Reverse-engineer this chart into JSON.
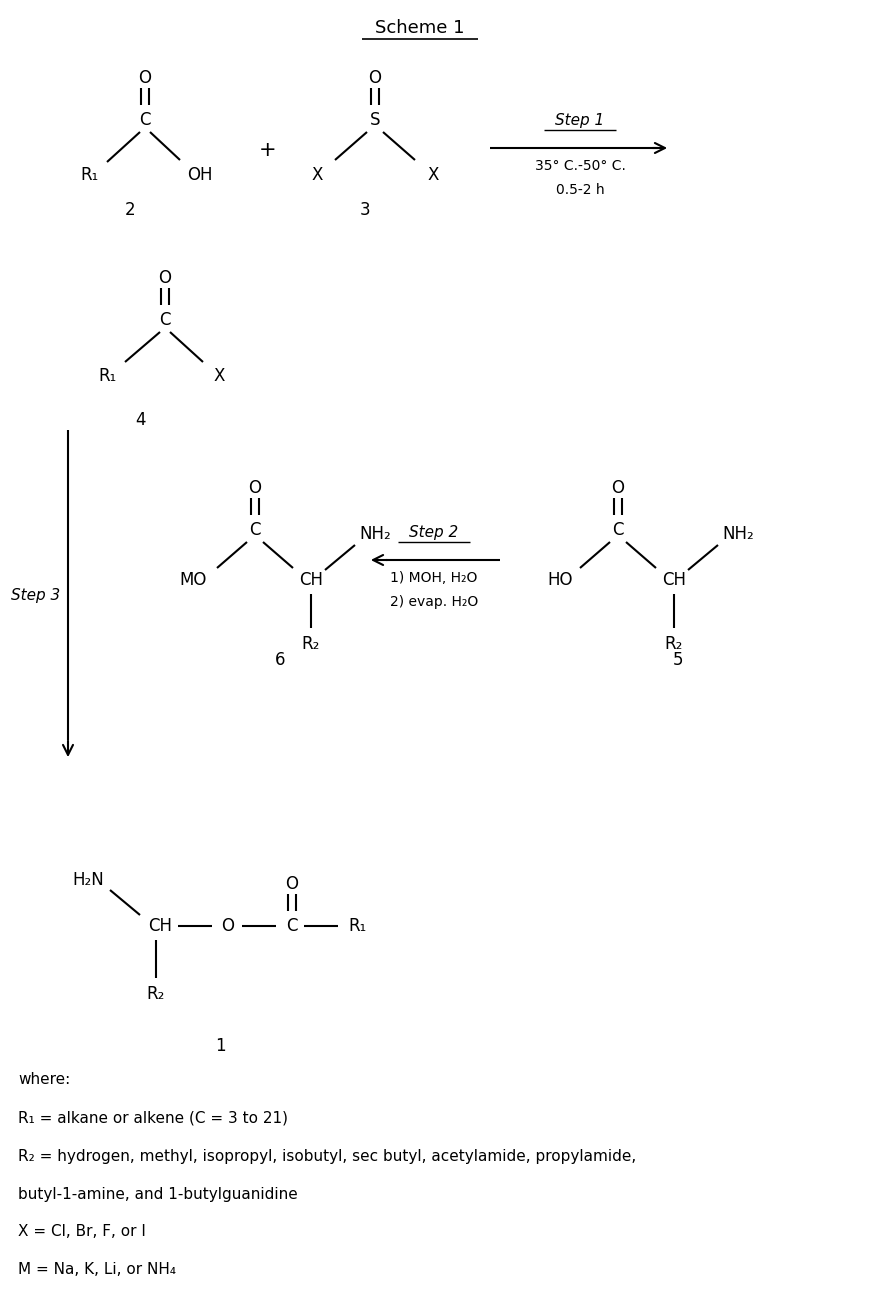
{
  "title": "Scheme 1",
  "bg_color": "#ffffff",
  "text_color": "#000000",
  "font_size": 12,
  "footnote_lines": [
    "where:",
    "R₁ = alkane or alkene (C = 3 to 21)",
    "R₂ = hydrogen, methyl, isopropyl, isobutyl, sec butyl, acetylamide, propylamide,",
    "butyl-1-amine, and 1-butylguanidine",
    "X = Cl, Br, F, or I",
    "M = Na, K, Li, or NH₄"
  ]
}
